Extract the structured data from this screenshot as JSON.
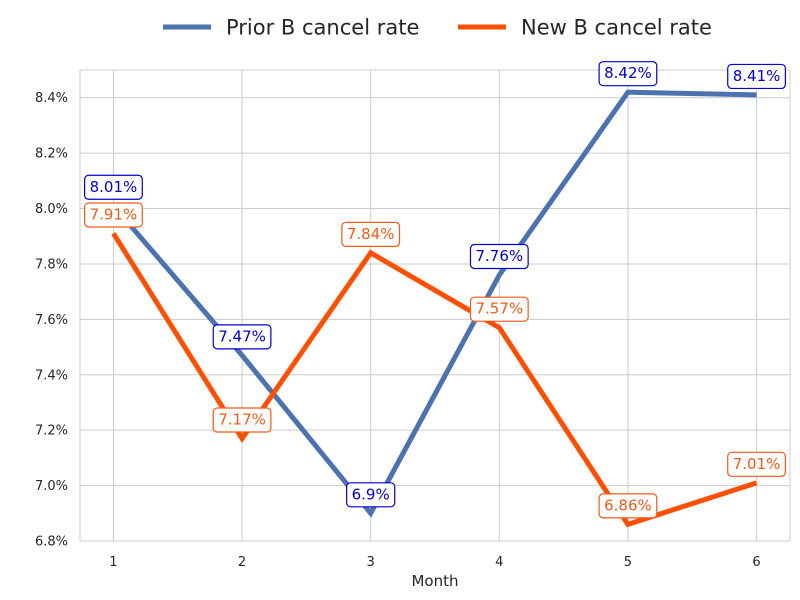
{
  "chart_data": {
    "type": "line",
    "xlabel": "Month",
    "ylabel": "",
    "x": [
      1,
      2,
      3,
      4,
      5,
      6
    ],
    "ylim": [
      6.8,
      8.5
    ],
    "y_ticks": [
      6.8,
      7.0,
      7.2,
      7.4,
      7.6,
      7.8,
      8.0,
      8.2,
      8.4
    ],
    "y_tick_labels": [
      "6.8%",
      "7.0%",
      "7.2%",
      "7.4%",
      "7.6%",
      "7.8%",
      "8.0%",
      "8.2%",
      "8.4%"
    ],
    "grid": true,
    "legend_position": "top-center",
    "series": [
      {
        "name": "Prior B cancel rate",
        "color": "#4c72b0",
        "label_color": "#0000cc",
        "values": [
          8.01,
          7.47,
          6.9,
          7.76,
          8.42,
          8.41
        ],
        "labels": [
          "8.01%",
          "7.47%",
          "6.9%",
          "7.76%",
          "8.42%",
          "8.41%"
        ]
      },
      {
        "name": "New B cancel rate",
        "color": "#ff4f00",
        "label_color": "#f05a1a",
        "values": [
          7.91,
          7.17,
          7.84,
          7.57,
          6.86,
          7.01
        ],
        "labels": [
          "7.91%",
          "7.17%",
          "7.84%",
          "7.57%",
          "6.86%",
          "7.01%"
        ]
      }
    ]
  }
}
